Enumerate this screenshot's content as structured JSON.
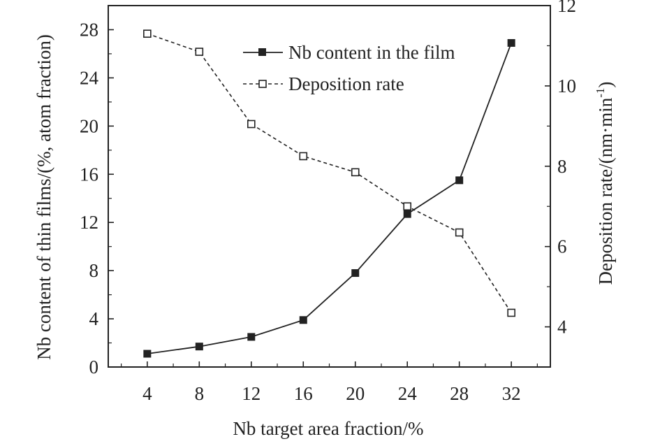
{
  "chart_data": {
    "type": "line",
    "x": [
      4,
      8,
      12,
      16,
      20,
      24,
      28,
      32
    ],
    "xlabel": "Nb target area fraction/%",
    "xlim": [
      1,
      35
    ],
    "xticks": [
      "4",
      "8",
      "12",
      "16",
      "20",
      "24",
      "28",
      "32"
    ],
    "ylabel_left": "Nb content of thin films/(%, atom fraction)",
    "ylim_left": [
      0,
      30
    ],
    "yticks_left": [
      "0",
      "4",
      "8",
      "12",
      "16",
      "20",
      "24",
      "28"
    ],
    "ylabel_right_main": "Deposition rate/(nm·min",
    "ylabel_right_sup": "-1",
    "ylabel_right_close": ")",
    "ylim_right": [
      3,
      12
    ],
    "yticks_right": [
      "4",
      "6",
      "8",
      "10",
      "12"
    ],
    "grid": false,
    "legend_position": "top-right",
    "series": [
      {
        "name": "Nb content in the film",
        "axis": "left",
        "line_style": "solid",
        "marker": "filled-square",
        "values": [
          1.1,
          1.7,
          2.5,
          3.9,
          7.8,
          12.7,
          15.5,
          26.9
        ]
      },
      {
        "name": "Deposition rate",
        "axis": "right",
        "line_style": "dashed",
        "marker": "open-square",
        "values": [
          11.3,
          10.85,
          9.05,
          8.25,
          7.85,
          7.0,
          6.35,
          4.35
        ]
      }
    ]
  }
}
